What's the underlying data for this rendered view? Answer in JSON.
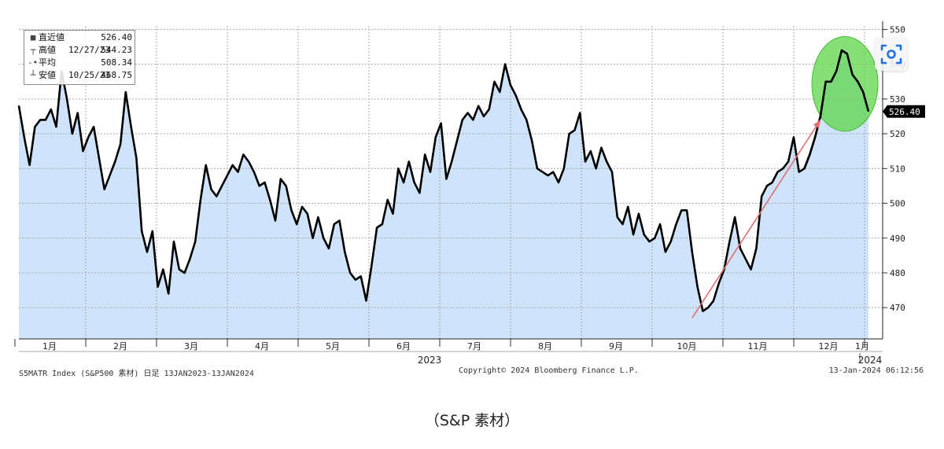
{
  "legend": {
    "rows": [
      {
        "mark": "■",
        "label": "直近値",
        "date": "",
        "value": "526.40"
      },
      {
        "mark": "┬",
        "label": "高値",
        "date": "12/27/23",
        "value": "544.23"
      },
      {
        "mark": "-•-",
        "label": "平均",
        "date": "",
        "value": "508.34"
      },
      {
        "mark": "┴",
        "label": "安値",
        "date": "10/25/23",
        "value": "468.75"
      }
    ]
  },
  "footer": {
    "left": "S5MATR Index (S&P500 素材)  日足 13JAN2023-13JAN2024",
    "center": "Copyright© 2024 Bloomberg Finance L.P.",
    "right": "13-Jan-2024 06:12:56"
  },
  "caption": "（S&P 素材）",
  "colors": {
    "area_fill": "#cfe4fb",
    "line": "#000000",
    "grid": "#a8a8a8",
    "highlight": "#5ed64a",
    "arrow": "#e07070"
  },
  "icons": {
    "focus": "focus-lens-icon"
  },
  "chart_data": {
    "type": "area",
    "title": "",
    "xlabel": "",
    "ylabel": "",
    "ylim": [
      461,
      551
    ],
    "yticks": [
      470,
      480,
      490,
      500,
      510,
      520,
      530,
      540,
      550
    ],
    "last_value_label": "526.40",
    "x_labels": [
      "1月",
      "2月",
      "3月",
      "4月",
      "5月",
      "6月",
      "7月",
      "8月",
      "9月",
      "10月",
      "11月",
      "12月",
      "1月"
    ],
    "year_labels": [
      "2023",
      "2024"
    ],
    "grid": true,
    "series": [
      {
        "values": [
          528,
          519,
          511,
          522,
          524,
          524,
          527,
          522,
          538,
          530,
          520,
          526,
          515,
          519,
          522,
          513,
          504,
          508,
          512,
          517,
          532,
          522,
          513,
          492,
          486,
          492,
          476,
          481,
          474,
          489,
          481,
          480,
          484,
          489,
          501,
          511,
          504,
          502,
          505,
          508,
          511,
          509,
          514,
          512,
          509,
          505,
          506,
          501,
          495,
          507,
          505,
          498,
          494,
          499,
          497,
          490,
          496,
          490,
          487,
          494,
          495,
          486,
          480,
          478,
          479,
          472,
          482,
          493,
          494,
          501,
          497,
          510,
          506,
          512,
          506,
          503,
          514,
          509,
          519,
          523,
          507,
          512,
          518,
          524,
          526,
          524,
          528,
          525,
          527,
          535,
          532,
          540,
          534,
          531,
          527,
          524,
          518,
          510,
          509,
          508,
          509,
          506,
          510,
          520,
          521,
          526,
          512,
          515,
          510,
          516,
          512,
          509,
          496,
          494,
          499,
          491,
          497,
          491,
          489,
          490,
          494,
          486,
          489,
          494,
          498,
          498,
          486,
          476,
          469,
          470,
          472,
          477,
          481,
          489,
          496,
          487,
          484,
          481,
          487,
          502,
          505,
          506,
          509,
          510,
          512,
          519,
          509,
          510,
          514,
          519,
          525,
          535,
          535,
          538,
          544,
          543,
          537,
          535,
          532,
          526.4
        ]
      }
    ],
    "annotations": [
      {
        "type": "ellipse",
        "label": "highlighted recent decline",
        "x_start_index": 149,
        "x_end_index": 159,
        "y_range": [
          525,
          545
        ]
      },
      {
        "type": "arrow",
        "label": "uptrend from October low",
        "from": {
          "index": 126,
          "value": 467
        },
        "to": {
          "index": 150,
          "value": 524
        }
      }
    ]
  }
}
